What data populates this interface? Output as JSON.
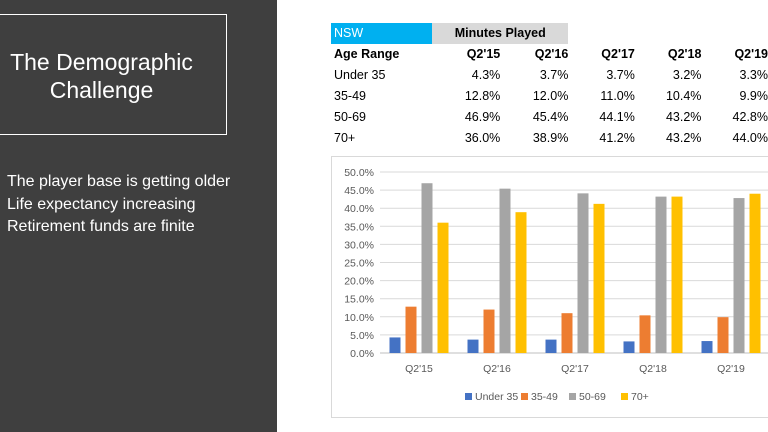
{
  "slide": {
    "title": "The Demographic Challenge",
    "bullets": [
      "The player base is getting older",
      "Life expectancy increasing",
      "Retirement funds are finite"
    ]
  },
  "table": {
    "region": "NSW",
    "metric": "Minutes Played",
    "header": [
      "Age Range",
      "Q2'15",
      "Q2'16",
      "Q2'17",
      "Q2'18",
      "Q2'19"
    ],
    "rows": [
      [
        "Under 35",
        "4.3%",
        "3.7%",
        "3.7%",
        "3.2%",
        "3.3%"
      ],
      [
        "35-49",
        "12.8%",
        "12.0%",
        "11.0%",
        "10.4%",
        "9.9%"
      ],
      [
        "50-69",
        "46.9%",
        "45.4%",
        "44.1%",
        "43.2%",
        "42.8%"
      ],
      [
        "70+",
        "36.0%",
        "38.9%",
        "41.2%",
        "43.2%",
        "44.0%"
      ]
    ]
  },
  "chart_data": {
    "type": "bar",
    "categories": [
      "Q2'15",
      "Q2'16",
      "Q2'17",
      "Q2'18",
      "Q2'19"
    ],
    "series": [
      {
        "name": "Under 35",
        "color": "#4472c4",
        "values": [
          4.3,
          3.7,
          3.7,
          3.2,
          3.3
        ]
      },
      {
        "name": "35-49",
        "color": "#ed7d31",
        "values": [
          12.8,
          12.0,
          11.0,
          10.4,
          9.9
        ]
      },
      {
        "name": "50-69",
        "color": "#a5a5a5",
        "values": [
          46.9,
          45.4,
          44.1,
          43.2,
          42.8
        ]
      },
      {
        "name": "70+",
        "color": "#ffc000",
        "values": [
          36.0,
          38.9,
          41.2,
          43.2,
          44.0
        ]
      }
    ],
    "yticks": [
      "0.0%",
      "5.0%",
      "10.0%",
      "15.0%",
      "20.0%",
      "25.0%",
      "30.0%",
      "35.0%",
      "40.0%",
      "45.0%",
      "50.0%"
    ],
    "ylim": [
      0,
      50
    ],
    "grid": true,
    "legend": "bottom"
  }
}
